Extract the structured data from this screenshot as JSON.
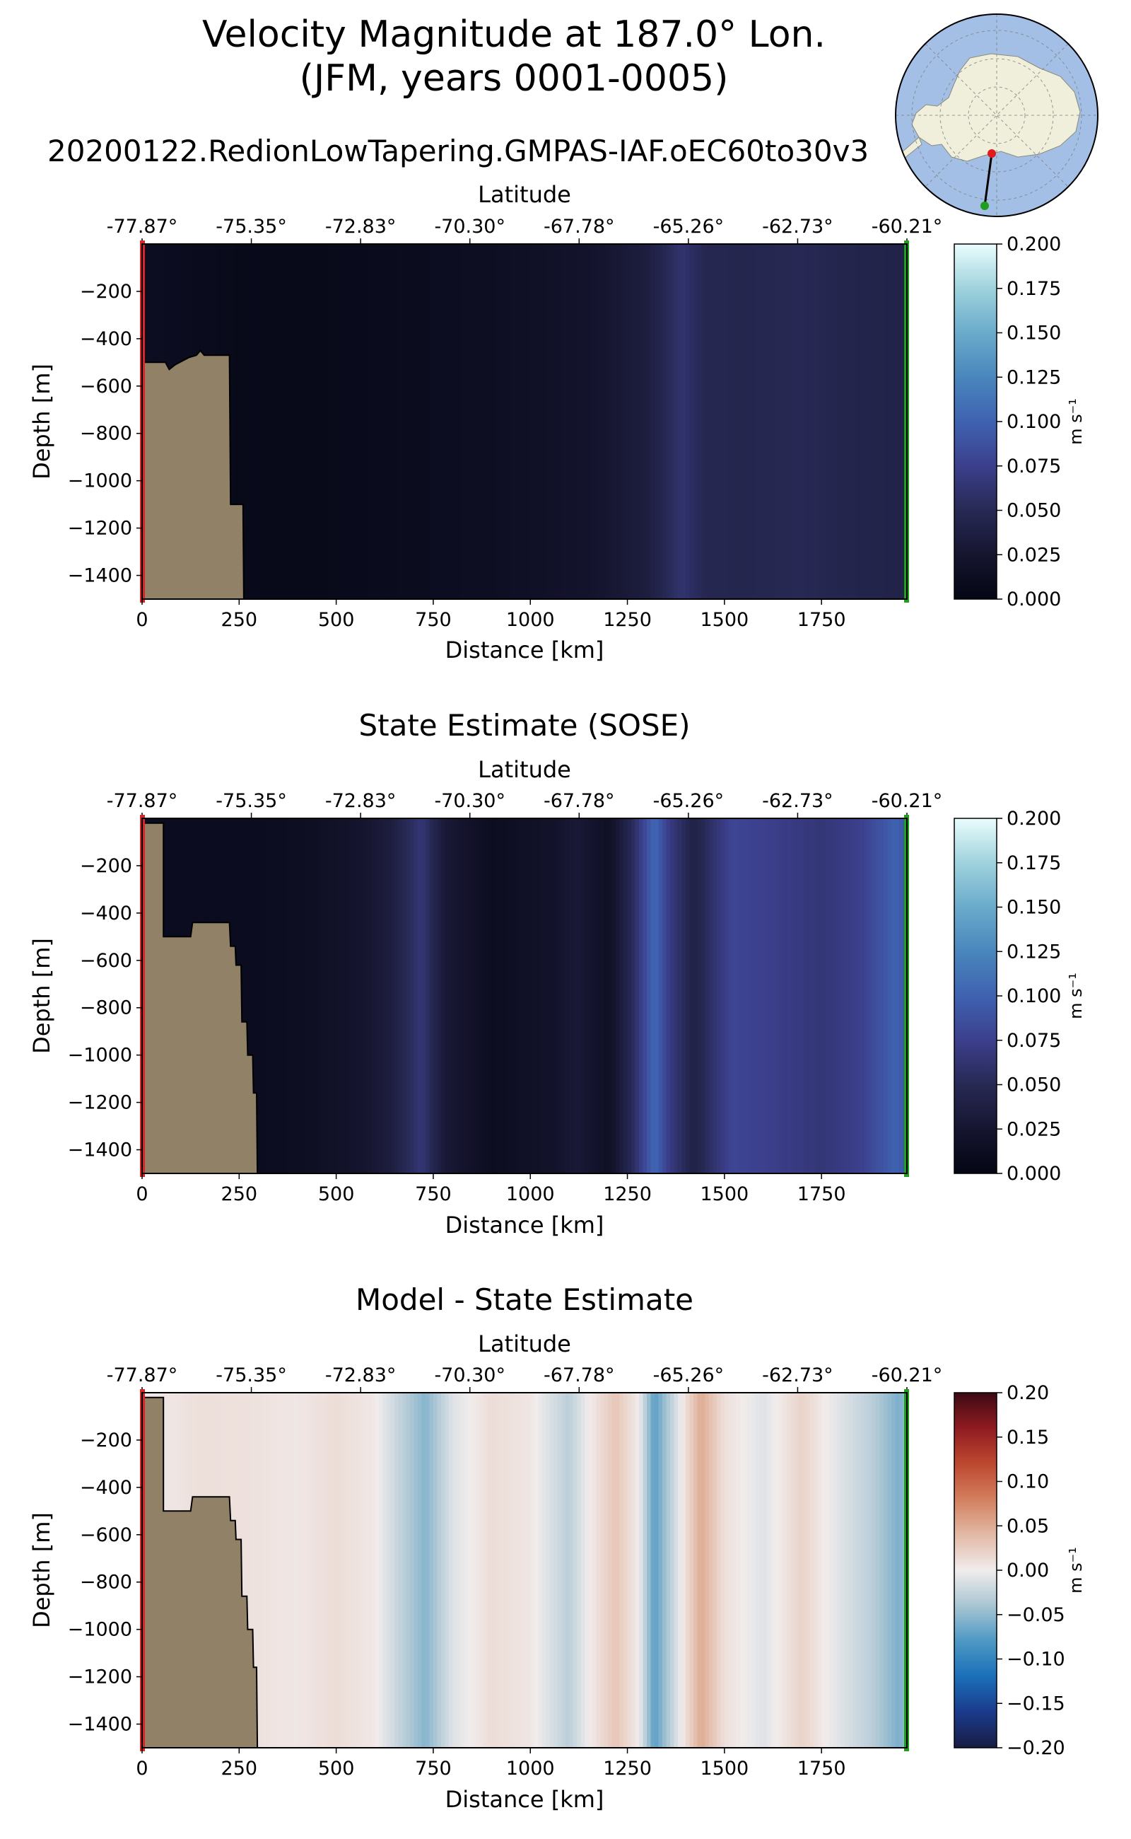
{
  "figure": {
    "title_line1": "Velocity Magnitude at 187.0° Lon.",
    "title_line2": "(JFM, years 0001-0005)"
  },
  "chart_data": [
    {
      "type": "heatmap",
      "title": "20200122.RedionLowTapering.GMPAS-IAF.oEC60to30v3",
      "xlabel": "Distance [km]",
      "ylabel": "Depth [m]",
      "top_xlabel": "Latitude",
      "xlim": [
        0,
        1970
      ],
      "ylim": [
        -1500,
        0
      ],
      "x_ticks": [
        0,
        250,
        500,
        750,
        1000,
        1250,
        1500,
        1750
      ],
      "y_ticks": [
        -200,
        -400,
        -600,
        -800,
        -1000,
        -1200,
        -1400
      ],
      "latitude_ticks": [
        "-77.87°",
        "-75.35°",
        "-72.83°",
        "-70.30°",
        "-67.78°",
        "-65.26°",
        "-62.73°",
        "-60.21°"
      ],
      "colorbar": {
        "ticks": [
          "0.000",
          "0.025",
          "0.050",
          "0.075",
          "0.100",
          "0.125",
          "0.150",
          "0.175",
          "0.200"
        ],
        "label": "m s⁻¹",
        "range": [
          0,
          0.2
        ],
        "colormap": "ice"
      },
      "column_values": [
        {
          "km": 0,
          "v": 0.012
        },
        {
          "km": 100,
          "v": 0.01
        },
        {
          "km": 250,
          "v": 0.006
        },
        {
          "km": 400,
          "v": 0.005
        },
        {
          "km": 600,
          "v": 0.008
        },
        {
          "km": 800,
          "v": 0.012
        },
        {
          "km": 1000,
          "v": 0.016
        },
        {
          "km": 1150,
          "v": 0.022
        },
        {
          "km": 1300,
          "v": 0.035
        },
        {
          "km": 1390,
          "v": 0.062
        },
        {
          "km": 1450,
          "v": 0.048
        },
        {
          "km": 1550,
          "v": 0.046
        },
        {
          "km": 1700,
          "v": 0.05
        },
        {
          "km": 1800,
          "v": 0.045
        },
        {
          "km": 1970,
          "v": 0.042
        }
      ],
      "bathymetry_km_depth": [
        [
          0,
          -1500
        ],
        [
          0,
          -500
        ],
        [
          60,
          -500
        ],
        [
          70,
          -530
        ],
        [
          85,
          -510
        ],
        [
          120,
          -480
        ],
        [
          140,
          -470
        ],
        [
          150,
          -450
        ],
        [
          160,
          -470
        ],
        [
          225,
          -470
        ],
        [
          228,
          -1100
        ],
        [
          260,
          -1100
        ],
        [
          262,
          -1500
        ]
      ]
    },
    {
      "type": "heatmap",
      "title": "State Estimate (SOSE)",
      "xlabel": "Distance [km]",
      "ylabel": "Depth [m]",
      "top_xlabel": "Latitude",
      "xlim": [
        0,
        1970
      ],
      "ylim": [
        -1500,
        0
      ],
      "x_ticks": [
        0,
        250,
        500,
        750,
        1000,
        1250,
        1500,
        1750
      ],
      "y_ticks": [
        -200,
        -400,
        -600,
        -800,
        -1000,
        -1200,
        -1400
      ],
      "latitude_ticks": [
        "-77.87°",
        "-75.35°",
        "-72.83°",
        "-70.30°",
        "-67.78°",
        "-65.26°",
        "-62.73°",
        "-60.21°"
      ],
      "colorbar": {
        "ticks": [
          "0.000",
          "0.025",
          "0.050",
          "0.075",
          "0.100",
          "0.125",
          "0.150",
          "0.175",
          "0.200"
        ],
        "label": "m s⁻¹",
        "range": [
          0,
          0.2
        ],
        "colormap": "ice"
      },
      "column_values": [
        {
          "km": 0,
          "v": 0.01
        },
        {
          "km": 300,
          "v": 0.01
        },
        {
          "km": 450,
          "v": 0.015
        },
        {
          "km": 580,
          "v": 0.025
        },
        {
          "km": 640,
          "v": 0.035
        },
        {
          "km": 720,
          "v": 0.065
        },
        {
          "km": 780,
          "v": 0.03
        },
        {
          "km": 900,
          "v": 0.012
        },
        {
          "km": 1050,
          "v": 0.02
        },
        {
          "km": 1120,
          "v": 0.03
        },
        {
          "km": 1200,
          "v": 0.015
        },
        {
          "km": 1260,
          "v": 0.05
        },
        {
          "km": 1320,
          "v": 0.105
        },
        {
          "km": 1360,
          "v": 0.07
        },
        {
          "km": 1420,
          "v": 0.04
        },
        {
          "km": 1520,
          "v": 0.08
        },
        {
          "km": 1650,
          "v": 0.072
        },
        {
          "km": 1750,
          "v": 0.065
        },
        {
          "km": 1850,
          "v": 0.075
        },
        {
          "km": 1940,
          "v": 0.1
        },
        {
          "km": 1970,
          "v": 0.09
        }
      ],
      "bathymetry_km_depth": [
        [
          0,
          -1500
        ],
        [
          0,
          -20
        ],
        [
          55,
          -20
        ],
        [
          55,
          -500
        ],
        [
          125,
          -500
        ],
        [
          130,
          -440
        ],
        [
          225,
          -440
        ],
        [
          228,
          -540
        ],
        [
          240,
          -540
        ],
        [
          242,
          -620
        ],
        [
          255,
          -620
        ],
        [
          257,
          -860
        ],
        [
          270,
          -860
        ],
        [
          272,
          -1000
        ],
        [
          285,
          -1000
        ],
        [
          287,
          -1160
        ],
        [
          295,
          -1160
        ],
        [
          297,
          -1500
        ]
      ]
    },
    {
      "type": "heatmap",
      "title": "Model - State Estimate",
      "xlabel": "Distance [km]",
      "ylabel": "Depth [m]",
      "top_xlabel": "Latitude",
      "xlim": [
        0,
        1970
      ],
      "ylim": [
        -1500,
        0
      ],
      "x_ticks": [
        0,
        250,
        500,
        750,
        1000,
        1250,
        1500,
        1750
      ],
      "y_ticks": [
        -200,
        -400,
        -600,
        -800,
        -1000,
        -1200,
        -1400
      ],
      "latitude_ticks": [
        "-77.87°",
        "-75.35°",
        "-72.83°",
        "-70.30°",
        "-67.78°",
        "-65.26°",
        "-62.73°",
        "-60.21°"
      ],
      "colorbar": {
        "ticks": [
          "0.20",
          "0.15",
          "0.10",
          "0.05",
          "0.00",
          "−0.05",
          "−0.10",
          "−0.15",
          "−0.20"
        ],
        "label": "m s⁻¹",
        "range": [
          -0.2,
          0.2
        ],
        "colormap": "balance"
      },
      "column_values": [
        {
          "km": 0,
          "v": 0.0
        },
        {
          "km": 150,
          "v": 0.01
        },
        {
          "km": 300,
          "v": 0.008
        },
        {
          "km": 400,
          "v": 0.004
        },
        {
          "km": 500,
          "v": 0.012
        },
        {
          "km": 600,
          "v": 0.003
        },
        {
          "km": 650,
          "v": -0.02
        },
        {
          "km": 730,
          "v": -0.055
        },
        {
          "km": 800,
          "v": -0.01
        },
        {
          "km": 900,
          "v": 0.012
        },
        {
          "km": 1000,
          "v": 0.005
        },
        {
          "km": 1100,
          "v": -0.03
        },
        {
          "km": 1150,
          "v": 0.0
        },
        {
          "km": 1220,
          "v": 0.03
        },
        {
          "km": 1280,
          "v": 0.0
        },
        {
          "km": 1320,
          "v": -0.075
        },
        {
          "km": 1370,
          "v": -0.02
        },
        {
          "km": 1440,
          "v": 0.05
        },
        {
          "km": 1500,
          "v": 0.01
        },
        {
          "km": 1600,
          "v": -0.01
        },
        {
          "km": 1700,
          "v": 0.02
        },
        {
          "km": 1760,
          "v": 0.0
        },
        {
          "km": 1880,
          "v": -0.03
        },
        {
          "km": 1950,
          "v": -0.06
        },
        {
          "km": 1970,
          "v": -0.045
        }
      ],
      "bathymetry_km_depth": [
        [
          0,
          -1500
        ],
        [
          0,
          -20
        ],
        [
          55,
          -20
        ],
        [
          55,
          -500
        ],
        [
          125,
          -500
        ],
        [
          130,
          -440
        ],
        [
          225,
          -440
        ],
        [
          228,
          -540
        ],
        [
          240,
          -540
        ],
        [
          242,
          -620
        ],
        [
          255,
          -620
        ],
        [
          257,
          -860
        ],
        [
          270,
          -860
        ],
        [
          272,
          -1000
        ],
        [
          285,
          -1000
        ],
        [
          287,
          -1160
        ],
        [
          295,
          -1160
        ],
        [
          297,
          -1500
        ]
      ]
    }
  ]
}
